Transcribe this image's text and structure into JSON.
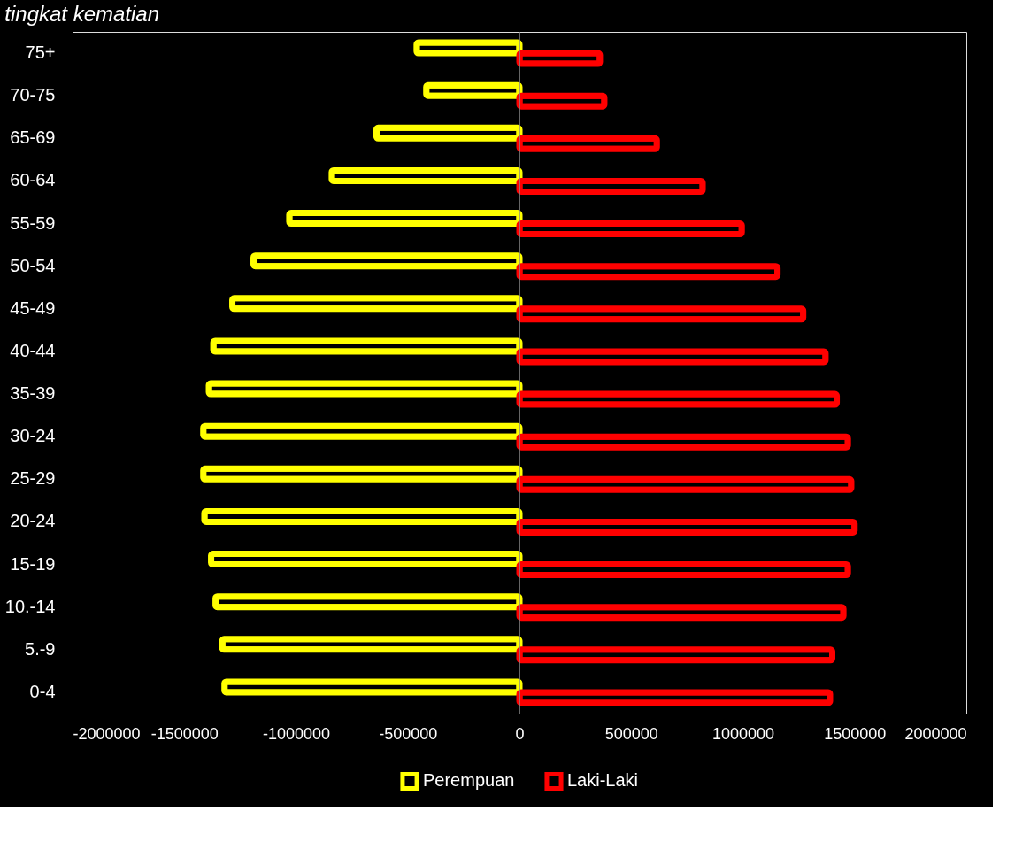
{
  "chart_data": {
    "type": "bar",
    "orientation": "horizontal",
    "annotations": [
      "tingkat kematian"
    ],
    "categories": [
      "75+",
      "70-75",
      "65-69",
      "60-64",
      "55-59",
      "50-54",
      "45-49",
      "40-44",
      "35-39",
      "30-24",
      "25-29",
      "20-24",
      "15-19",
      "10.-14",
      "5.-9",
      "0-4"
    ],
    "series": [
      {
        "name": "Perempuan",
        "color": "#ffff00",
        "values": [
          -460000,
          -417000,
          -640000,
          -840000,
          -1030000,
          -1190000,
          -1285000,
          -1370000,
          -1390000,
          -1415000,
          -1415000,
          -1410000,
          -1380000,
          -1360000,
          -1330000,
          -1320000
        ]
      },
      {
        "name": "Laki-Laki",
        "color": "#ff0000",
        "values": [
          360000,
          380000,
          615000,
          820000,
          995000,
          1155000,
          1270000,
          1370000,
          1420000,
          1470000,
          1485000,
          1500000,
          1470000,
          1450000,
          1400000,
          1390000
        ]
      }
    ],
    "xlim": [
      -2000000,
      2000000
    ],
    "xticks": [
      -2000000,
      -1500000,
      -1000000,
      -500000,
      0,
      500000,
      1000000,
      1500000,
      2000000
    ],
    "legend": "bottom"
  }
}
